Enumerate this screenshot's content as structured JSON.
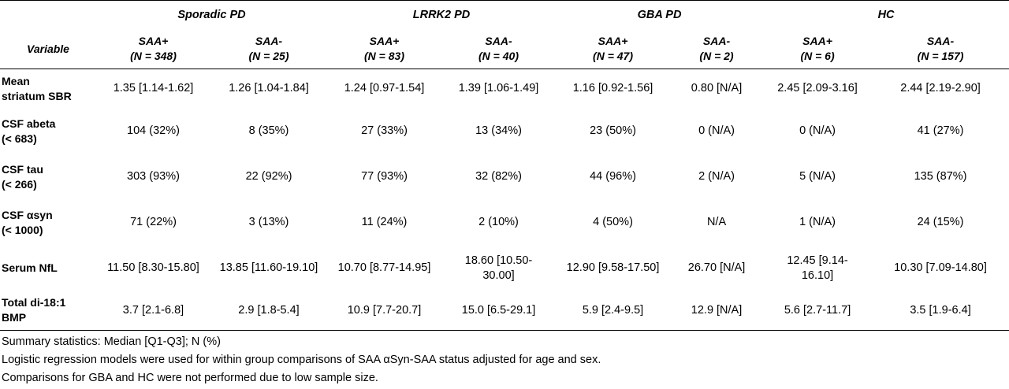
{
  "groups": [
    "Sporadic PD",
    "LRRK2 PD",
    "GBA PD",
    "HC"
  ],
  "variable_header": "Variable",
  "subheaders": [
    {
      "status": "SAA+",
      "n": "(N = 348)"
    },
    {
      "status": "SAA-",
      "n": "(N = 25)"
    },
    {
      "status": "SAA+",
      "n": "(N = 83)"
    },
    {
      "status": "SAA-",
      "n": "(N = 40)"
    },
    {
      "status": "SAA+",
      "n": "(N = 47)"
    },
    {
      "status": "SAA-",
      "n": "(N = 2)"
    },
    {
      "status": "SAA+",
      "n": "(N = 6)"
    },
    {
      "status": "SAA-",
      "n": "(N = 157)"
    }
  ],
  "rows": [
    {
      "label": [
        "Mean",
        "striatum SBR"
      ],
      "values": [
        "1.35 [1.14-1.62]",
        "1.26 [1.04-1.84]",
        "1.24 [0.97-1.54]",
        "1.39 [1.06-1.49]",
        "1.16 [0.92-1.56]",
        "0.80 [N/A]",
        "2.45 [2.09-3.16]",
        "2.44 [2.19-2.90]"
      ]
    },
    {
      "label": [
        "CSF abeta",
        "(< 683)"
      ],
      "values": [
        "104 (32%)",
        "8 (35%)",
        "27 (33%)",
        "13 (34%)",
        "23 (50%)",
        "0 (N/A)",
        "0 (N/A)",
        "41 (27%)"
      ]
    },
    {
      "label": [
        "CSF tau",
        "(< 266)"
      ],
      "values": [
        "303 (93%)",
        "22 (92%)",
        "77 (93%)",
        "32 (82%)",
        "44 (96%)",
        "2 (N/A)",
        "5 (N/A)",
        "135 (87%)"
      ]
    },
    {
      "label": [
        "CSF αsyn",
        "(< 1000)"
      ],
      "values": [
        "71 (22%)",
        "3 (13%)",
        "11 (24%)",
        "2 (10%)",
        "4 (50%)",
        "N/A",
        "1 (N/A)",
        "24 (15%)"
      ]
    },
    {
      "label": [
        "Serum NfL"
      ],
      "values": [
        "11.50 [8.30-15.80]",
        "13.85 [11.60-19.10]",
        "10.70 [8.77-14.95]",
        "18.60 [10.50-\n30.00]",
        "12.90 [9.58-17.50]",
        "26.70 [N/A]",
        "12.45 [9.14-\n16.10]",
        "10.30 [7.09-14.80]"
      ]
    },
    {
      "label": [
        "Total di-18:1",
        "BMP"
      ],
      "values": [
        "3.7 [2.1-6.8]",
        "2.9 [1.8-5.4]",
        "10.9 [7.7-20.7]",
        "15.0 [6.5-29.1]",
        "5.9 [2.4-9.5]",
        "12.9 [N/A]",
        "5.6 [2.7-11.7]",
        "3.5 [1.9-6.4]"
      ]
    }
  ],
  "notes": [
    "Summary statistics: Median [Q1-Q3]; N (%)",
    "Logistic regression models were used for within group comparisons of SAA αSyn-SAA status adjusted for age and sex.",
    "Comparisons for GBA and HC were not performed due to low sample size."
  ]
}
